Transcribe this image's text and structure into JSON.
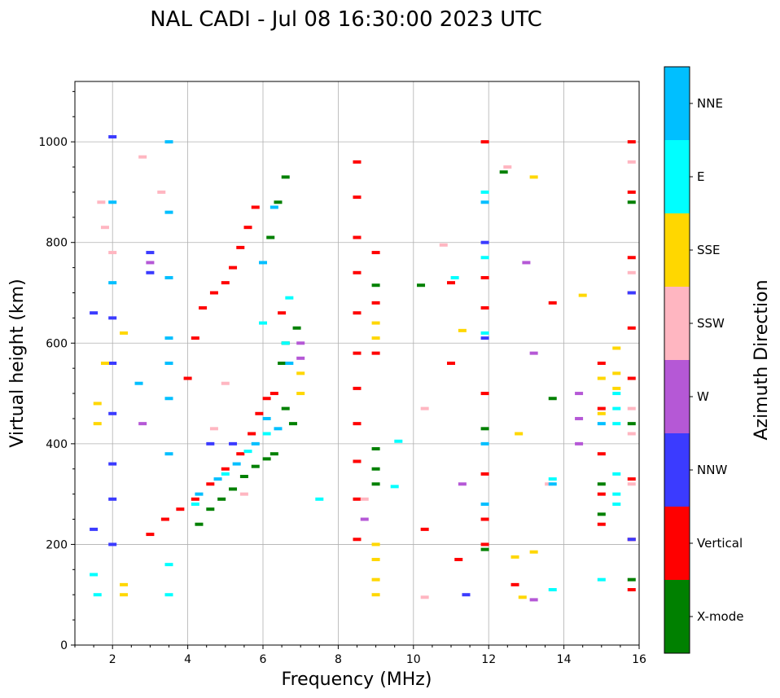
{
  "chart_data": {
    "type": "scatter",
    "title": "NAL CADI - Jul 08 16:30:00 2023 UTC",
    "xlabel": "Frequency (MHz)",
    "ylabel": "Virtual height (km)",
    "xlim": [
      1,
      16
    ],
    "ylim": [
      0,
      1120
    ],
    "x_ticks": [
      2,
      4,
      6,
      8,
      10,
      12,
      14,
      16
    ],
    "y_ticks": [
      0,
      200,
      400,
      600,
      800,
      1000
    ],
    "grid": true,
    "colorbar": {
      "label": "Azimuth Direction",
      "categories": [
        "X-mode",
        "Vertical",
        "NNW",
        "W",
        "SSW",
        "SSE",
        "E",
        "NNE"
      ],
      "colors": [
        "#008000",
        "#ff0000",
        "#3b3bff",
        "#b558d6",
        "#ffb6c1",
        "#ffd700",
        "#00ffff",
        "#00bfff"
      ]
    },
    "series": [
      {
        "name": "X-mode",
        "points": [
          [
            4.3,
            240
          ],
          [
            4.6,
            270
          ],
          [
            4.9,
            290
          ],
          [
            5.2,
            310
          ],
          [
            5.5,
            335
          ],
          [
            5.8,
            355
          ],
          [
            6.1,
            370
          ],
          [
            6.3,
            380
          ],
          [
            6.6,
            470
          ],
          [
            6.8,
            440
          ],
          [
            6.5,
            560
          ],
          [
            6.6,
            600
          ],
          [
            6.9,
            630
          ],
          [
            9.0,
            350
          ],
          [
            9.0,
            390
          ],
          [
            9.0,
            320
          ],
          [
            6.4,
            880
          ],
          [
            6.6,
            930
          ],
          [
            6.2,
            810
          ],
          [
            9.0,
            715
          ],
          [
            11.9,
            430
          ],
          [
            11.9,
            190
          ],
          [
            12.4,
            940
          ],
          [
            13.7,
            490
          ],
          [
            15.0,
            260
          ],
          [
            15.0,
            320
          ],
          [
            15.8,
            880
          ],
          [
            15.8,
            440
          ],
          [
            15.8,
            130
          ],
          [
            10.2,
            715
          ]
        ]
      },
      {
        "name": "Vertical",
        "points": [
          [
            3.0,
            220
          ],
          [
            3.4,
            250
          ],
          [
            3.8,
            270
          ],
          [
            4.2,
            290
          ],
          [
            4.6,
            320
          ],
          [
            5.0,
            350
          ],
          [
            5.4,
            380
          ],
          [
            5.7,
            420
          ],
          [
            5.9,
            460
          ],
          [
            6.1,
            490
          ],
          [
            4.4,
            670
          ],
          [
            4.7,
            700
          ],
          [
            5.0,
            720
          ],
          [
            5.2,
            750
          ],
          [
            5.4,
            790
          ],
          [
            5.6,
            830
          ],
          [
            5.8,
            870
          ],
          [
            6.5,
            660
          ],
          [
            6.3,
            500
          ],
          [
            8.5,
            960
          ],
          [
            8.5,
            890
          ],
          [
            8.5,
            810
          ],
          [
            8.5,
            740
          ],
          [
            8.5,
            660
          ],
          [
            8.5,
            580
          ],
          [
            8.5,
            510
          ],
          [
            8.5,
            440
          ],
          [
            8.5,
            365
          ],
          [
            8.5,
            290
          ],
          [
            8.5,
            210
          ],
          [
            9.0,
            780
          ],
          [
            9.0,
            680
          ],
          [
            9.0,
            580
          ],
          [
            11.9,
            1000
          ],
          [
            11.9,
            730
          ],
          [
            11.9,
            670
          ],
          [
            11.9,
            500
          ],
          [
            11.9,
            340
          ],
          [
            11.9,
            250
          ],
          [
            11.9,
            200
          ],
          [
            15.0,
            560
          ],
          [
            15.0,
            470
          ],
          [
            15.0,
            380
          ],
          [
            15.0,
            300
          ],
          [
            15.0,
            240
          ],
          [
            15.8,
            1000
          ],
          [
            15.8,
            900
          ],
          [
            15.8,
            770
          ],
          [
            15.8,
            700
          ],
          [
            15.8,
            630
          ],
          [
            15.8,
            530
          ],
          [
            15.8,
            330
          ],
          [
            15.8,
            210
          ],
          [
            15.8,
            110
          ],
          [
            4.2,
            610
          ],
          [
            4.0,
            530
          ],
          [
            10.3,
            230
          ],
          [
            12.7,
            120
          ],
          [
            13.7,
            680
          ],
          [
            11.2,
            170
          ],
          [
            11.0,
            720
          ],
          [
            11.0,
            560
          ]
        ]
      },
      {
        "name": "NNW",
        "points": [
          [
            2.0,
            1010
          ],
          [
            3.0,
            780
          ],
          [
            3.0,
            740
          ],
          [
            2.0,
            650
          ],
          [
            2.0,
            560
          ],
          [
            2.0,
            460
          ],
          [
            2.0,
            360
          ],
          [
            2.0,
            290
          ],
          [
            2.0,
            200
          ],
          [
            1.5,
            230
          ],
          [
            1.5,
            660
          ],
          [
            11.9,
            800
          ],
          [
            11.9,
            610
          ],
          [
            11.4,
            100
          ],
          [
            15.8,
            700
          ],
          [
            15.8,
            210
          ],
          [
            4.6,
            400
          ],
          [
            5.2,
            400
          ]
        ]
      },
      {
        "name": "W",
        "points": [
          [
            8.7,
            250
          ],
          [
            7.0,
            600
          ],
          [
            7.0,
            570
          ],
          [
            13.0,
            760
          ],
          [
            13.2,
            580
          ],
          [
            14.4,
            500
          ],
          [
            14.4,
            450
          ],
          [
            14.4,
            400
          ],
          [
            13.2,
            90
          ],
          [
            11.3,
            320
          ],
          [
            3.0,
            760
          ],
          [
            2.8,
            440
          ]
        ]
      },
      {
        "name": "SSW",
        "points": [
          [
            1.7,
            880
          ],
          [
            1.8,
            830
          ],
          [
            2.0,
            780
          ],
          [
            2.8,
            970
          ],
          [
            3.3,
            900
          ],
          [
            5.0,
            520
          ],
          [
            4.7,
            430
          ],
          [
            5.5,
            300
          ],
          [
            10.8,
            795
          ],
          [
            10.3,
            470
          ],
          [
            10.3,
            95
          ],
          [
            15.8,
            960
          ],
          [
            15.8,
            740
          ],
          [
            15.8,
            470
          ],
          [
            15.8,
            420
          ],
          [
            15.8,
            320
          ],
          [
            13.6,
            320
          ],
          [
            12.5,
            950
          ],
          [
            8.7,
            290
          ]
        ]
      },
      {
        "name": "SSE",
        "points": [
          [
            9.0,
            640
          ],
          [
            9.0,
            610
          ],
          [
            9.0,
            200
          ],
          [
            9.0,
            170
          ],
          [
            9.0,
            130
          ],
          [
            9.0,
            100
          ],
          [
            7.0,
            500
          ],
          [
            7.0,
            540
          ],
          [
            13.2,
            930
          ],
          [
            12.8,
            420
          ],
          [
            14.5,
            695
          ],
          [
            12.7,
            175
          ],
          [
            12.9,
            95
          ],
          [
            13.2,
            185
          ],
          [
            15.0,
            460
          ],
          [
            15.0,
            530
          ],
          [
            15.4,
            590
          ],
          [
            15.4,
            540
          ],
          [
            15.4,
            510
          ],
          [
            2.3,
            100
          ],
          [
            2.3,
            120
          ],
          [
            1.6,
            480
          ],
          [
            1.6,
            440
          ],
          [
            1.8,
            560
          ],
          [
            2.3,
            620
          ],
          [
            11.3,
            625
          ]
        ]
      },
      {
        "name": "E",
        "points": [
          [
            4.2,
            280
          ],
          [
            5.0,
            340
          ],
          [
            5.6,
            385
          ],
          [
            6.1,
            420
          ],
          [
            6.6,
            600
          ],
          [
            6.7,
            690
          ],
          [
            6.0,
            640
          ],
          [
            3.5,
            160
          ],
          [
            3.5,
            100
          ],
          [
            1.5,
            140
          ],
          [
            1.6,
            100
          ],
          [
            13.7,
            110
          ],
          [
            13.7,
            330
          ],
          [
            15.0,
            130
          ],
          [
            15.4,
            500
          ],
          [
            15.4,
            470
          ],
          [
            15.4,
            440
          ],
          [
            15.4,
            300
          ],
          [
            15.4,
            280
          ],
          [
            15.4,
            340
          ],
          [
            11.9,
            900
          ],
          [
            11.9,
            770
          ],
          [
            11.9,
            620
          ],
          [
            9.5,
            315
          ],
          [
            9.6,
            405
          ],
          [
            7.5,
            290
          ],
          [
            11.1,
            730
          ]
        ]
      },
      {
        "name": "NNE",
        "points": [
          [
            3.5,
            1000
          ],
          [
            3.5,
            860
          ],
          [
            3.5,
            730
          ],
          [
            3.5,
            610
          ],
          [
            3.5,
            560
          ],
          [
            3.5,
            490
          ],
          [
            3.5,
            380
          ],
          [
            4.3,
            300
          ],
          [
            4.8,
            330
          ],
          [
            5.3,
            360
          ],
          [
            5.8,
            400
          ],
          [
            6.1,
            450
          ],
          [
            6.4,
            430
          ],
          [
            6.3,
            870
          ],
          [
            6.0,
            760
          ],
          [
            6.7,
            560
          ],
          [
            2.0,
            880
          ],
          [
            2.0,
            720
          ],
          [
            2.7,
            520
          ],
          [
            11.9,
            880
          ],
          [
            11.9,
            400
          ],
          [
            11.9,
            280
          ],
          [
            15.0,
            440
          ],
          [
            13.7,
            320
          ]
        ]
      }
    ]
  }
}
